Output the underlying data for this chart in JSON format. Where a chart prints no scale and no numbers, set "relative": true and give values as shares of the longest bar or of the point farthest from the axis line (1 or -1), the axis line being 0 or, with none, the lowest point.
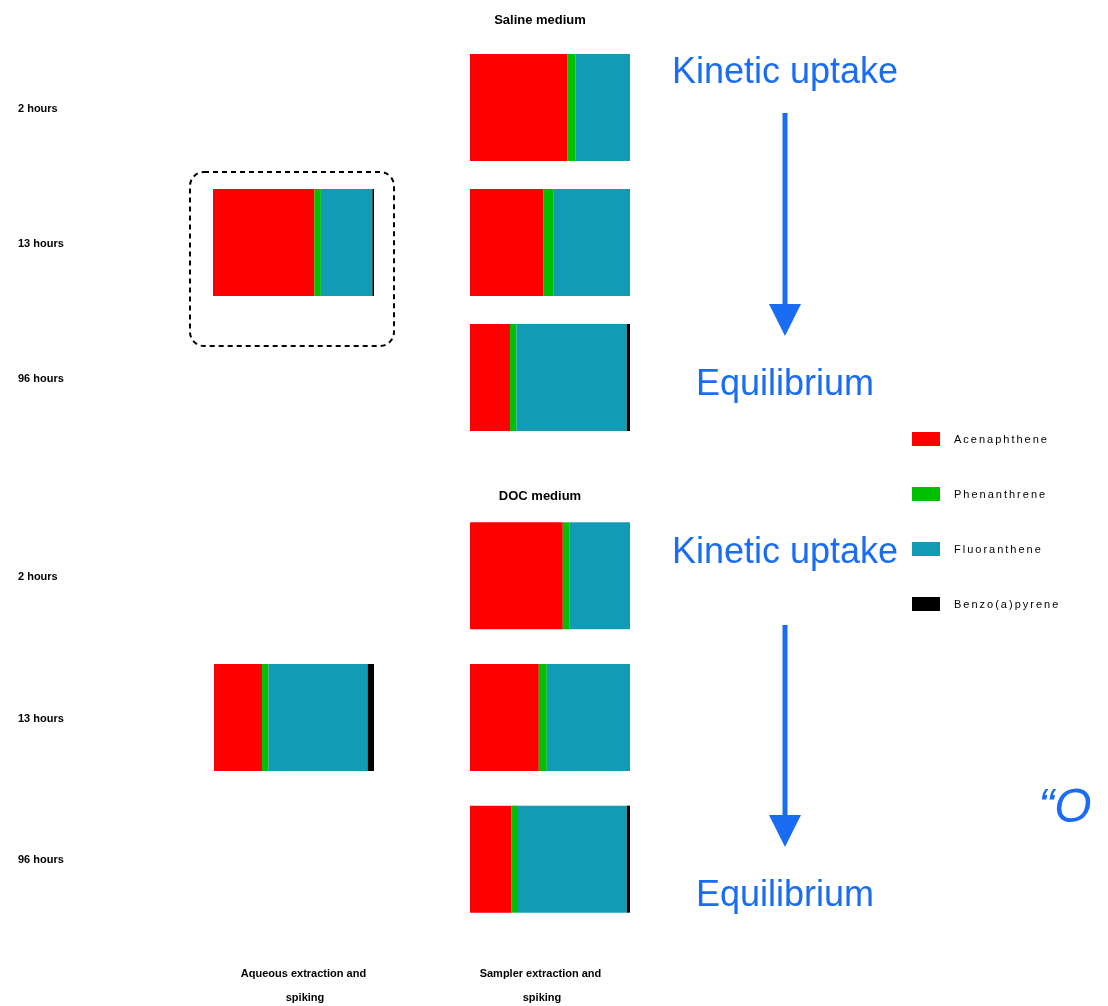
{
  "chart_data": [
    {
      "type": "bar",
      "orientation": "horizontal",
      "stacked": true,
      "relative": true,
      "categories": [
        "2 hours",
        "13 hours",
        "96 hours"
      ],
      "tick_labels": "y",
      "series": [
        {
          "color": "#ff0000",
          "values": [
            null,
            0.63,
            null
          ]
        },
        {
          "color": "#00c000",
          "values": [
            null,
            0.04,
            null
          ]
        },
        {
          "color": "#119bb5",
          "values": [
            null,
            0.32,
            null
          ]
        },
        {
          "color": "#000000",
          "values": [
            null,
            0.01,
            null
          ]
        }
      ]
    },
    {
      "type": "bar",
      "orientation": "horizontal",
      "stacked": true,
      "relative": true,
      "title": "Saline medium",
      "categories": [
        "2 hours",
        "13 hours",
        "96 hours"
      ],
      "tick_labels": false,
      "annotations": [
        "Kinetic uptake",
        "Equilibrium"
      ],
      "series": [
        {
          "color": "#ff0000",
          "values": [
            0.61,
            0.46,
            0.25
          ]
        },
        {
          "color": "#00c000",
          "values": [
            0.05,
            0.06,
            0.04
          ]
        },
        {
          "color": "#119bb5",
          "values": [
            0.34,
            0.48,
            0.69
          ]
        },
        {
          "color": "#000000",
          "values": [
            0,
            0,
            0.02
          ]
        }
      ]
    },
    {
      "type": "bar",
      "orientation": "horizontal",
      "stacked": true,
      "relative": true,
      "xlabel": "Aqueous extraction and spiking",
      "categories": [
        "2 hours",
        "13 hours",
        "96 hours"
      ],
      "tick_labels": "y",
      "series": [
        {
          "color": "#ff0000",
          "values": [
            null,
            0.3,
            null
          ]
        },
        {
          "color": "#00c000",
          "values": [
            null,
            0.04,
            null
          ]
        },
        {
          "color": "#119bb5",
          "values": [
            null,
            0.62,
            null
          ]
        },
        {
          "color": "#000000",
          "values": [
            null,
            0.04,
            null
          ]
        }
      ]
    },
    {
      "type": "bar",
      "orientation": "horizontal",
      "stacked": true,
      "relative": true,
      "title": "DOC medium",
      "xlabel": "Sampler extraction and spiking",
      "categories": [
        "2 hours",
        "13 hours",
        "96 hours"
      ],
      "tick_labels": false,
      "legend": "right",
      "annotations": [
        "Kinetic uptake",
        "Equilibrium",
        "“O"
      ],
      "series": [
        {
          "name": "Acenaphthene",
          "color": "#ff0000",
          "values": [
            0.58,
            0.43,
            0.26
          ]
        },
        {
          "name": "Phenanthrene",
          "color": "#00c000",
          "values": [
            0.04,
            0.05,
            0.04
          ]
        },
        {
          "name": "Fluoranthene",
          "color": "#119bb5",
          "values": [
            0.38,
            0.52,
            0.68
          ]
        },
        {
          "name": "Benzo(a)pyrene",
          "color": "#000000",
          "values": [
            0,
            0,
            0.02
          ]
        }
      ]
    }
  ]
}
